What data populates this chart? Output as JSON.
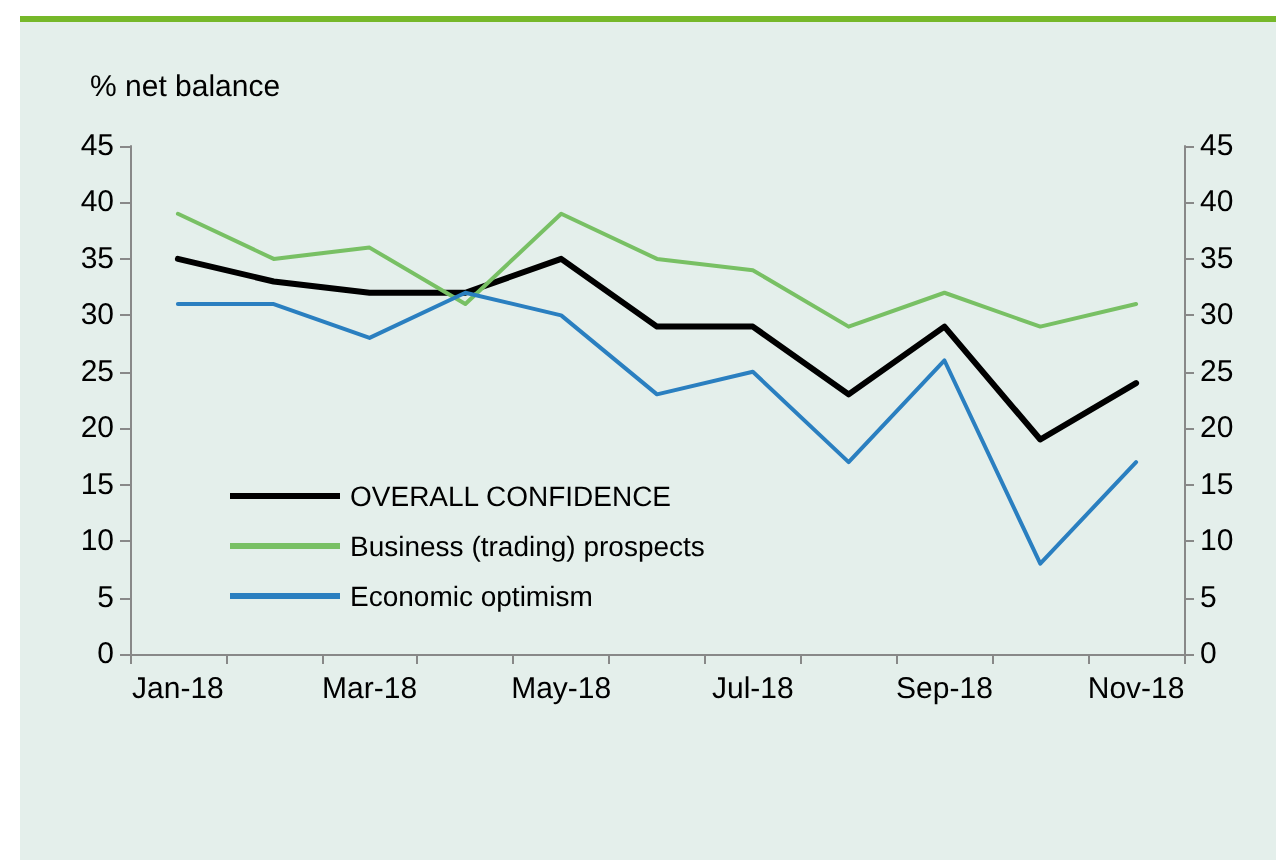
{
  "chart_data": {
    "type": "line",
    "ylabel": "% net balance",
    "categories": [
      "Jan-18",
      null,
      "Mar-18",
      null,
      "May-18",
      null,
      "Jul-18",
      null,
      "Sep-18",
      null,
      "Nov-18"
    ],
    "series": [
      {
        "name": "OVERALL CONFIDENCE",
        "color": "#000000",
        "values": [
          35,
          33,
          32,
          32,
          35,
          29,
          29,
          23,
          29,
          19,
          24
        ]
      },
      {
        "name": "Business (trading) prospects",
        "color": "#78c064",
        "values": [
          39,
          35,
          36,
          31,
          39,
          35,
          34,
          29,
          32,
          29,
          31
        ]
      },
      {
        "name": "Economic optimism",
        "color": "#2a7fc0",
        "values": [
          31,
          31,
          28,
          32,
          30,
          23,
          25,
          17,
          26,
          8,
          17
        ]
      }
    ],
    "ylim": [
      0,
      45
    ],
    "yticks": [
      0,
      5,
      10,
      15,
      20,
      25,
      30,
      35,
      40,
      45
    ],
    "y2lim": [
      0,
      45
    ],
    "y2ticks": [
      0,
      5,
      10,
      15,
      20,
      25,
      30,
      35,
      40,
      45
    ],
    "grid": false,
    "legend": "bottom left",
    "marker": "none",
    "line_style": "solid"
  }
}
